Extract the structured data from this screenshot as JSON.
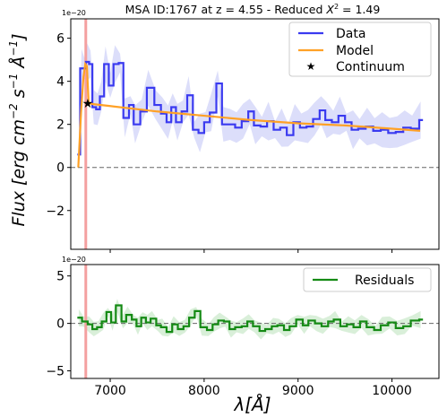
{
  "chart_data": [
    {
      "type": "line",
      "title_prefix": "MSA ID:1767 at z = 4.55 - Reduced ",
      "title_chi": "X",
      "title_exp": "2",
      "title_suffix": " = 1.49",
      "ylabel_parts": [
        "Flux [erg cm",
        "−2",
        " s",
        "−1",
        " Å",
        "−1",
        "]"
      ],
      "offset_text": "1e−20",
      "xlim": [
        6580,
        10500
      ],
      "ylim": [
        -3.8,
        6.9
      ],
      "yticks": [
        -2,
        0,
        2,
        4,
        6
      ],
      "ytick_labels": [
        "−2",
        "0",
        "2",
        "4",
        "6"
      ],
      "vline_x": 6740,
      "legend": [
        "Data",
        "Model",
        "Continuum"
      ],
      "colors": {
        "data": "#3a3af0",
        "model": "#ffa126",
        "band": "#b9bdf5",
        "vline": "#f4a0a0"
      },
      "series": [
        {
          "name": "Data",
          "x": [
            6650,
            6680,
            6710,
            6740,
            6775,
            6810,
            6850,
            6890,
            6935,
            6985,
            7035,
            7090,
            7140,
            7200,
            7250,
            7320,
            7390,
            7470,
            7540,
            7600,
            7650,
            7700,
            7760,
            7820,
            7880,
            7940,
            8000,
            8060,
            8130,
            8190,
            8260,
            8330,
            8400,
            8470,
            8530,
            8600,
            8670,
            8740,
            8810,
            8880,
            8950,
            9020,
            9090,
            9160,
            9230,
            9290,
            9360,
            9430,
            9500,
            9570,
            9640,
            9720,
            9800,
            9880,
            9960,
            10040,
            10120,
            10200,
            10290
          ],
          "y": [
            0.6,
            4.6,
            4.6,
            4.9,
            4.8,
            2.8,
            2.7,
            3.3,
            4.8,
            3.8,
            4.8,
            4.85,
            2.3,
            2.9,
            2.0,
            2.6,
            3.7,
            2.9,
            2.5,
            2.1,
            2.8,
            2.1,
            2.6,
            3.35,
            1.75,
            1.6,
            2.1,
            2.55,
            3.9,
            2.0,
            2.0,
            1.85,
            2.15,
            2.6,
            1.95,
            1.9,
            2.15,
            1.75,
            1.85,
            1.5,
            2.1,
            1.85,
            1.9,
            2.25,
            2.65,
            2.2,
            2.1,
            2.4,
            2.1,
            1.75,
            1.8,
            1.9,
            1.7,
            1.75,
            1.6,
            1.65,
            1.85,
            1.8,
            2.2
          ]
        },
        {
          "name": "Model",
          "x": [
            6660,
            6690,
            6715,
            6735,
            6752,
            6770,
            6800,
            7000,
            7500,
            8000,
            8500,
            9000,
            9500,
            10000,
            10300
          ],
          "y": [
            0.0,
            2.6,
            4.2,
            4.8,
            4.7,
            3.0,
            2.95,
            2.85,
            2.6,
            2.4,
            2.2,
            2.05,
            1.95,
            1.8,
            1.7
          ]
        },
        {
          "name": "Continuum",
          "x": [
            6760
          ],
          "y": [
            2.98
          ]
        }
      ]
    },
    {
      "type": "line",
      "offset_text": "1e−20",
      "xlabel": "λ[Å]",
      "xlim": [
        6580,
        10500
      ],
      "ylim": [
        -5.8,
        6.2
      ],
      "yticks": [
        -5,
        0,
        5
      ],
      "ytick_labels": [
        "−5",
        "0",
        "5"
      ],
      "xticks": [
        7000,
        8000,
        9000,
        10000
      ],
      "xtick_labels": [
        "7000",
        "8000",
        "9000",
        "10000"
      ],
      "vline_x": 6740,
      "legend": [
        "Residuals"
      ],
      "colors": {
        "residuals": "#148a14",
        "band": "#bfe5bf"
      },
      "series": [
        {
          "name": "Residuals",
          "x": [
            6650,
            6700,
            6760,
            6810,
            6860,
            6910,
            6960,
            7010,
            7060,
            7120,
            7170,
            7230,
            7280,
            7330,
            7380,
            7430,
            7490,
            7540,
            7600,
            7660,
            7720,
            7780,
            7840,
            7900,
            7960,
            8030,
            8090,
            8150,
            8210,
            8270,
            8330,
            8400,
            8460,
            8520,
            8590,
            8650,
            8720,
            8780,
            8850,
            8910,
            8980,
            9050,
            9110,
            9180,
            9250,
            9320,
            9380,
            9450,
            9520,
            9590,
            9660,
            9730,
            9810,
            9880,
            9960,
            10040,
            10120,
            10200,
            10290
          ],
          "y": [
            0.6,
            0.2,
            -0.1,
            -0.6,
            -0.4,
            0.2,
            1.2,
            0.1,
            1.9,
            0.2,
            0.9,
            0.4,
            -0.3,
            0.6,
            0.1,
            0.5,
            -0.2,
            -0.4,
            -0.9,
            -0.1,
            -0.6,
            -0.3,
            0.6,
            1.3,
            -0.4,
            -0.7,
            -0.1,
            0.3,
            0.2,
            -0.6,
            -0.4,
            -0.3,
            0.2,
            -0.3,
            -0.8,
            -0.6,
            -0.3,
            -0.2,
            -0.7,
            -0.3,
            0.4,
            -0.2,
            0.3,
            0.0,
            -0.3,
            0.2,
            0.4,
            -0.3,
            -0.1,
            -0.4,
            0.2,
            -0.4,
            -0.7,
            -0.2,
            0.1,
            -0.5,
            -0.3,
            0.3,
            0.4
          ]
        }
      ]
    }
  ]
}
